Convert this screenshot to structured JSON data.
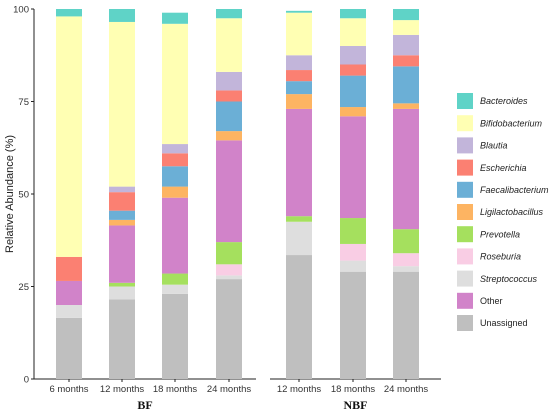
{
  "chart_data": {
    "type": "bar",
    "stacked": true,
    "ylabel": "Relative Abundance (%)",
    "ylim": [
      0,
      100
    ],
    "yticks": [
      0,
      25,
      50,
      75,
      100
    ],
    "grid": false,
    "legend_position": "right",
    "groups": [
      {
        "label": "BF",
        "categories": [
          "6 months",
          "12 months",
          "18 months",
          "24 months"
        ]
      },
      {
        "label": "NBF",
        "categories": [
          "12 months",
          "18 months",
          "24 months"
        ]
      }
    ],
    "series": [
      {
        "name": "Unassigned",
        "italic": false,
        "color": "#bfbfbf",
        "values": [
          16.5,
          21.5,
          23,
          27,
          33.5,
          29,
          29
        ]
      },
      {
        "name": "Other",
        "italic": false,
        "color": "#d183c9",
        "values": [
          0,
          0,
          0,
          0,
          0,
          0,
          0
        ]
      },
      {
        "name": "Streptococcus",
        "italic": true,
        "color": "#dedede",
        "values": [
          3.5,
          3.5,
          2.5,
          1,
          9,
          3,
          1.5
        ]
      },
      {
        "name": "Roseburia",
        "italic": true,
        "color": "#f9cde4",
        "values": [
          0,
          0,
          0,
          3,
          0,
          4.5,
          3.5
        ]
      },
      {
        "name": "Prevotella",
        "italic": true,
        "color": "#a5e05e",
        "values": [
          0,
          1,
          3,
          6,
          1.5,
          7,
          6.5
        ]
      },
      {
        "name": "Other",
        "italic": false,
        "color": "#d183c9",
        "values": [
          6.5,
          15.5,
          20.5,
          27.5,
          29,
          27.5,
          32.5
        ]
      },
      {
        "name": "Ligilactobacillus",
        "italic": true,
        "color": "#fdb462",
        "values": [
          0,
          1.5,
          3,
          2.5,
          4,
          2.5,
          1.5
        ]
      },
      {
        "name": "Faecalibacterium",
        "italic": true,
        "color": "#6bafd6",
        "values": [
          0,
          2.5,
          5.5,
          8,
          3.5,
          8.5,
          10
        ]
      },
      {
        "name": "Escherichia",
        "italic": true,
        "color": "#fb8072",
        "values": [
          6.5,
          5,
          3.5,
          3,
          3,
          3,
          3
        ]
      },
      {
        "name": "Blautia",
        "italic": true,
        "color": "#c2b5da",
        "values": [
          0,
          1.5,
          2.5,
          5,
          4,
          5,
          5.5
        ]
      },
      {
        "name": "Bifidobacterium",
        "italic": true,
        "color": "#ffffb3",
        "values": [
          65,
          44.5,
          32.5,
          14.5,
          11.5,
          7.5,
          4
        ]
      },
      {
        "name": "Bacteroides",
        "italic": true,
        "color": "#5fd3c7",
        "values": [
          2,
          3.5,
          3,
          2.5,
          0.5,
          2.5,
          3
        ]
      }
    ],
    "legend": [
      {
        "name": "Bacteroides",
        "italic": true,
        "color": "#5fd3c7"
      },
      {
        "name": "Bifidobacterium",
        "italic": true,
        "color": "#ffffb3"
      },
      {
        "name": "Blautia",
        "italic": true,
        "color": "#c2b5da"
      },
      {
        "name": "Escherichia",
        "italic": true,
        "color": "#fb8072"
      },
      {
        "name": "Faecalibacterium",
        "italic": true,
        "color": "#6bafd6"
      },
      {
        "name": "Ligilactobacillus",
        "italic": true,
        "color": "#fdb462"
      },
      {
        "name": "Prevotella",
        "italic": true,
        "color": "#a5e05e"
      },
      {
        "name": "Roseburia",
        "italic": true,
        "color": "#f9cde4"
      },
      {
        "name": "Streptococcus",
        "italic": true,
        "color": "#dedede"
      },
      {
        "name": "Other",
        "italic": false,
        "color": "#d183c9"
      },
      {
        "name": "Unassigned",
        "italic": false,
        "color": "#bfbfbf"
      }
    ]
  }
}
